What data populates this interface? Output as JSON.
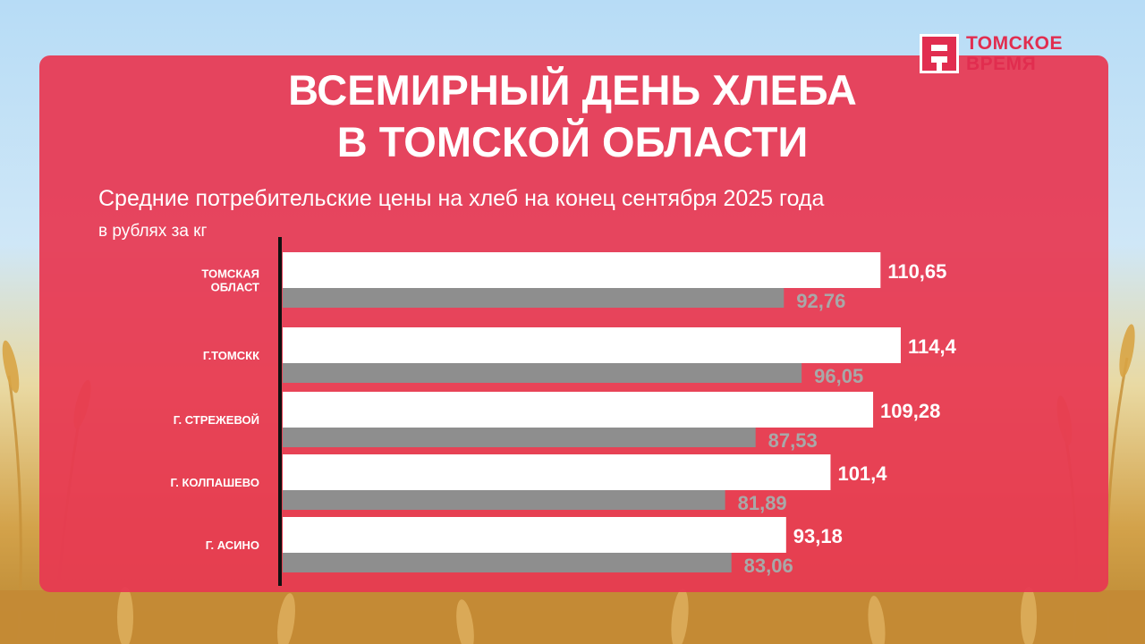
{
  "logo": {
    "line1": "ТОМСКОЕ",
    "line2": "ВРЕМЯ"
  },
  "title_line1": "ВСЕМИРНЫЙ ДЕНЬ ХЛЕБА",
  "title_line2": "В ТОМСКОЙ ОБЛАСТИ",
  "subtitle": "Средние потребительские цены на хлеб на конец сентября 2025 года",
  "unit": "в рублях за кг",
  "colors": {
    "card": "#e73852",
    "bar_primary": "#ffffff",
    "bar_secondary": "#8e8e8e",
    "label_secondary": "#a8a8a8",
    "brand": "#e12d4f"
  },
  "chart_data": {
    "type": "bar",
    "orientation": "horizontal",
    "title": "Средние потребительские цены на хлеб на конец сентября 2025 года",
    "xlabel": "в рублях за кг",
    "categories": [
      [
        "ТОМСКАЯ",
        "ОБЛАСТ"
      ],
      [
        "Г.ТОМСКК"
      ],
      [
        "Г. СТРЕЖЕВОЙ"
      ],
      [
        "Г. КОЛПАШЕВО"
      ],
      [
        "Г. АСИНО"
      ]
    ],
    "series": [
      {
        "values": [
          110.65,
          114.4,
          109.28,
          101.4,
          93.18
        ],
        "labels": [
          "110,65",
          "114,4",
          "109,28",
          "101,4",
          "93,18"
        ],
        "color": "#ffffff"
      },
      {
        "values": [
          92.76,
          96.05,
          87.53,
          81.89,
          83.06
        ],
        "labels": [
          "92,76",
          "96,05",
          "87,53",
          "81,89",
          "83,06"
        ],
        "color": "#8e8e8e"
      }
    ],
    "xlim": [
      0,
      120
    ],
    "grid": false,
    "legend": "none"
  }
}
